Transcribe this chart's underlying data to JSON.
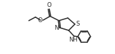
{
  "bg_color": "#ffffff",
  "line_color": "#2a2a2a",
  "line_width": 1.1,
  "font_size": 6.2,
  "fig_width": 1.66,
  "fig_height": 0.78,
  "dpi": 100,
  "xlim": [
    0,
    10
  ],
  "ylim": [
    0,
    4.7
  ]
}
